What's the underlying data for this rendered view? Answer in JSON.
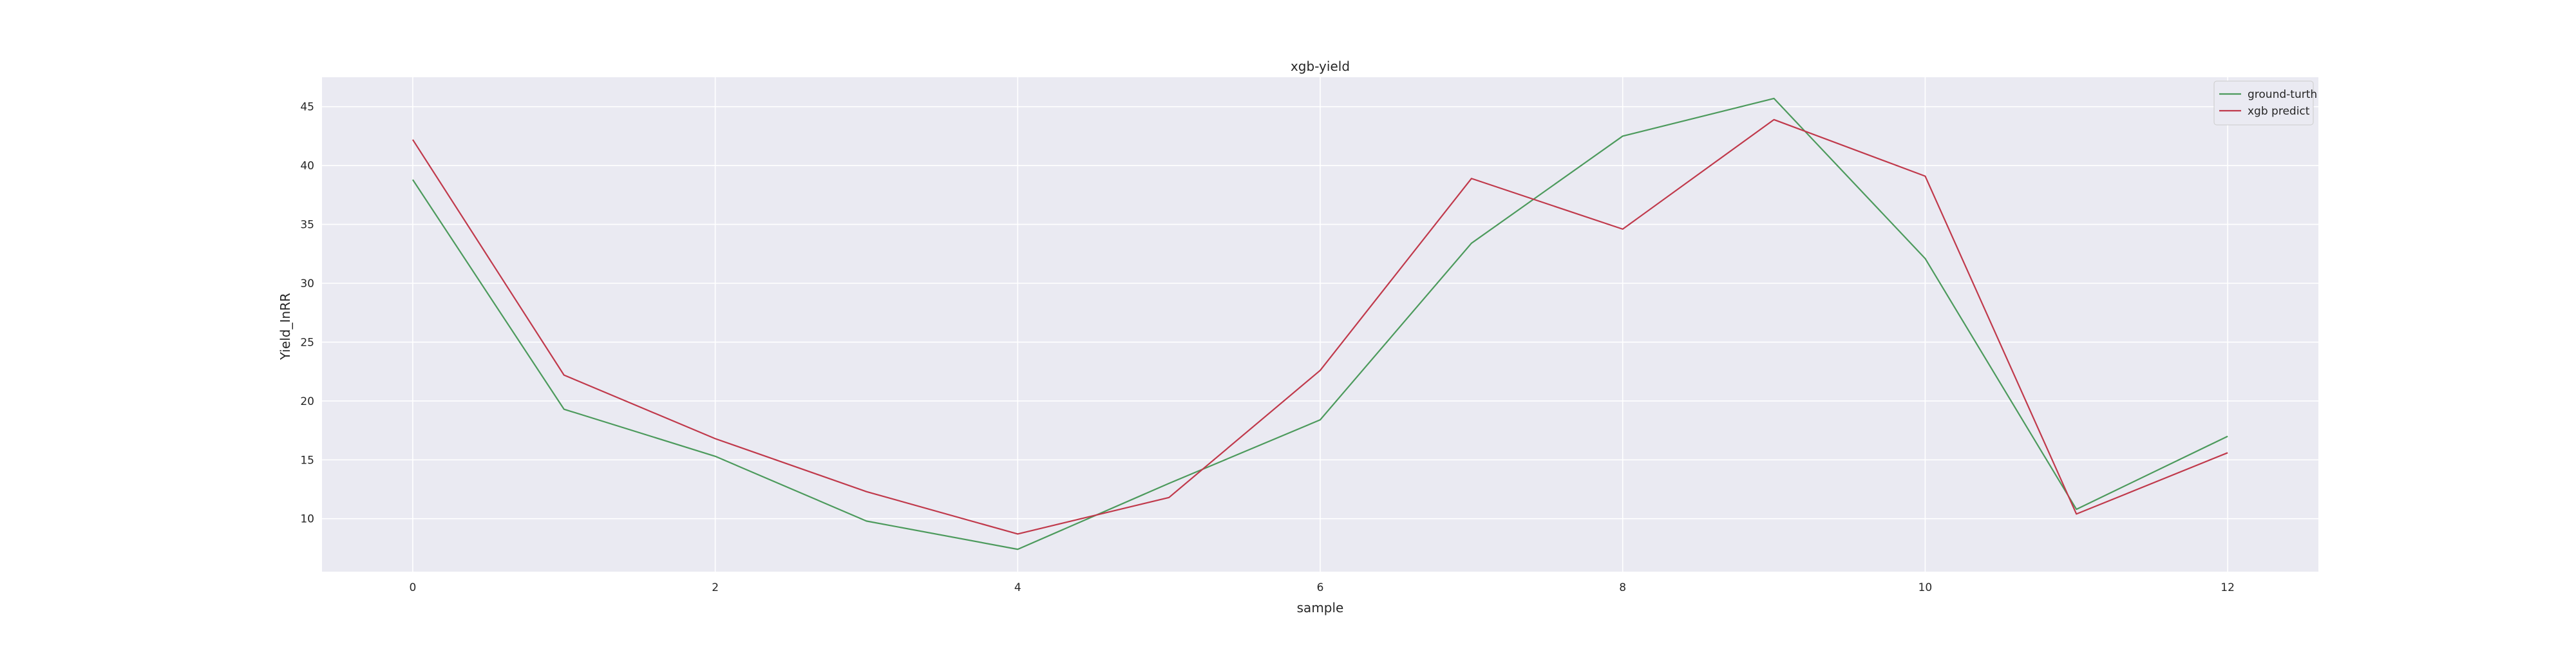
{
  "chart_data": {
    "type": "line",
    "title": "xgb-yield",
    "xlabel": "sample",
    "ylabel": "Yield_InRR",
    "x": [
      0,
      1,
      2,
      3,
      4,
      5,
      6,
      7,
      8,
      9,
      10,
      11,
      12
    ],
    "xticks": [
      0,
      2,
      4,
      6,
      8,
      10,
      12
    ],
    "yticks": [
      10,
      15,
      20,
      25,
      30,
      35,
      40,
      45
    ],
    "xlim": [
      -0.6,
      12.6
    ],
    "ylim": [
      5.5,
      47.5
    ],
    "grid": true,
    "legend_position": "top-right",
    "background": "#eaeaf2",
    "series": [
      {
        "name": "ground-turth",
        "color": "#4c9a5c",
        "values": [
          38.8,
          19.3,
          15.3,
          9.8,
          7.4,
          13.0,
          18.4,
          33.4,
          42.5,
          45.7,
          32.1,
          10.8,
          17.0
        ]
      },
      {
        "name": "xgb predict",
        "color": "#c0394b",
        "values": [
          42.2,
          22.2,
          16.8,
          12.3,
          8.7,
          11.8,
          22.6,
          38.9,
          34.6,
          43.9,
          39.1,
          10.4,
          15.6
        ]
      }
    ]
  }
}
